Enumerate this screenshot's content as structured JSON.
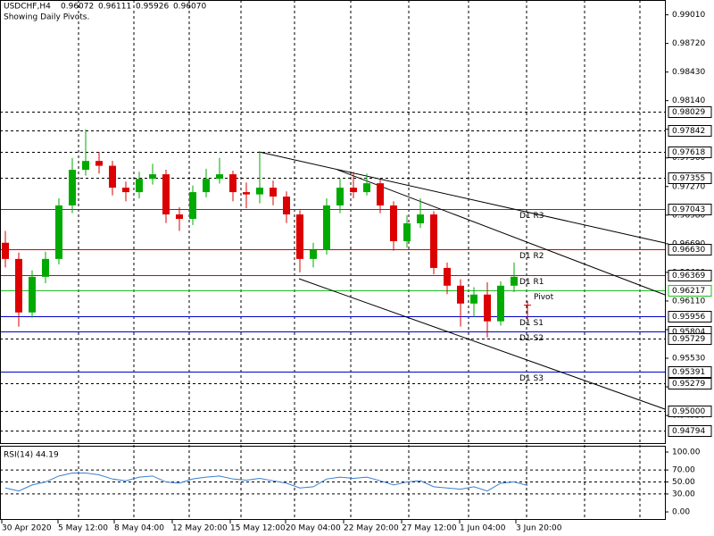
{
  "header": {
    "symbol": "USDCHF,H4",
    "ohlc": [
      "0.96072",
      "0.96111",
      "0.95926",
      "0.96070"
    ],
    "note": "Showing Daily Pivots."
  },
  "chart_data": {
    "type": "candlestick",
    "ylim": [
      0.9467,
      0.9916
    ],
    "yticks": [
      {
        "value": 0.9901,
        "label": "0.99010"
      },
      {
        "value": 0.9872,
        "label": "0.98720"
      },
      {
        "value": 0.9843,
        "label": "0.98430"
      },
      {
        "value": 0.9814,
        "label": "0.98140"
      },
      {
        "value": 0.9785,
        "label": "0.97850"
      },
      {
        "value": 0.9756,
        "label": "0.97560"
      },
      {
        "value": 0.9727,
        "label": "0.97270"
      },
      {
        "value": 0.9698,
        "label": "0.96980"
      },
      {
        "value": 0.9669,
        "label": "0.96690"
      },
      {
        "value": 0.964,
        "label": "0.96400"
      },
      {
        "value": 0.9611,
        "label": "0.96110"
      },
      {
        "value": 0.9582,
        "label": "0.95820"
      },
      {
        "value": 0.9553,
        "label": "0.95530"
      },
      {
        "value": 0.9524,
        "label": "0.95240"
      },
      {
        "value": 0.9495,
        "label": "0.94950"
      }
    ],
    "levels": [
      {
        "value": 0.98029,
        "label": "0.98029",
        "color": "#000000",
        "style": "dash"
      },
      {
        "value": 0.97842,
        "label": "0.97842",
        "color": "#000000",
        "style": "dash"
      },
      {
        "value": 0.97618,
        "label": "0.97618",
        "color": "#000000",
        "style": "dash"
      },
      {
        "value": 0.97355,
        "label": "0.97355",
        "color": "#000000",
        "style": "dash"
      },
      {
        "value": 0.97043,
        "label": "0.97043",
        "color": "#dd0000",
        "style": "solid",
        "text": "D1 R3"
      },
      {
        "value": 0.9663,
        "label": "0.96630",
        "color": "#dd0000",
        "style": "solid",
        "text": "D1 R2"
      },
      {
        "value": 0.96369,
        "label": "0.96369",
        "color": "#dd0000",
        "style": "solid",
        "text": "D1 R1"
      },
      {
        "value": 0.96217,
        "label": "0.96217",
        "color": "#22bb22",
        "style": "solid",
        "text": "Pivot"
      },
      {
        "value": 0.95956,
        "label": "0.95956",
        "color": "#0000cc",
        "style": "solid",
        "text": "D1 S1"
      },
      {
        "value": 0.95804,
        "label": "0.95804",
        "color": "#0000cc",
        "style": "solid",
        "text": "D1 S2"
      },
      {
        "value": 0.95729,
        "label": "0.95729",
        "color": "#000000",
        "style": "dash"
      },
      {
        "value": 0.95391,
        "label": "0.95391",
        "color": "#0000cc",
        "style": "solid",
        "text": "D1 S3"
      },
      {
        "value": 0.95279,
        "label": "0.95279",
        "color": "#000000",
        "style": "dash"
      },
      {
        "value": 0.95,
        "label": "0.95000",
        "color": "#000000",
        "style": "dash"
      },
      {
        "value": 0.94794,
        "label": "0.94794",
        "color": "#000000",
        "style": "dash"
      }
    ],
    "up_color": "#00aa00",
    "down_color": "#dd0000",
    "open": [
      0.967,
      0.96536,
      0.95994,
      0.96355,
      0.96536,
      0.97078,
      0.97439,
      0.97529,
      0.9748,
      0.97258,
      0.97213,
      0.97348,
      0.97394,
      0.96987,
      0.96942,
      0.97213,
      0.97348,
      0.97394,
      0.97213,
      0.9719,
      0.97258,
      0.97168,
      0.96987,
      0.96536,
      0.96626,
      0.97078,
      0.97258,
      0.97213,
      0.97303,
      0.97078,
      0.96716,
      0.96897,
      0.96987,
      0.96445,
      0.96265,
      0.96084,
      0.96175,
      0.95904,
      0.96265,
      0.96072
    ],
    "high": [
      0.9682,
      0.966,
      0.9642,
      0.9661,
      0.9715,
      0.9756,
      0.9785,
      0.9762,
      0.9753,
      0.9732,
      0.9742,
      0.975,
      0.9744,
      0.9706,
      0.9728,
      0.9745,
      0.9756,
      0.9743,
      0.9731,
      0.9762,
      0.9733,
      0.9722,
      0.9703,
      0.967,
      0.9715,
      0.9735,
      0.9742,
      0.974,
      0.9734,
      0.9712,
      0.9698,
      0.9715,
      0.9702,
      0.965,
      0.9633,
      0.9625,
      0.963,
      0.9631,
      0.965,
      0.96111
    ],
    "low": [
      0.9645,
      0.9585,
      0.9594,
      0.9629,
      0.9648,
      0.97,
      0.9738,
      0.974,
      0.9718,
      0.9712,
      0.9715,
      0.9729,
      0.969,
      0.9682,
      0.9688,
      0.9716,
      0.973,
      0.9712,
      0.9705,
      0.971,
      0.9708,
      0.969,
      0.964,
      0.9645,
      0.9658,
      0.97,
      0.9715,
      0.9718,
      0.97,
      0.9662,
      0.9665,
      0.9685,
      0.9638,
      0.9618,
      0.9585,
      0.9595,
      0.9574,
      0.9586,
      0.962,
      0.95926
    ],
    "close": [
      0.96536,
      0.95994,
      0.96355,
      0.96536,
      0.97078,
      0.97439,
      0.97529,
      0.9748,
      0.97258,
      0.97213,
      0.97348,
      0.97394,
      0.96987,
      0.96942,
      0.97213,
      0.97348,
      0.97394,
      0.97213,
      0.9719,
      0.97258,
      0.97168,
      0.96987,
      0.96536,
      0.96626,
      0.97078,
      0.97258,
      0.97213,
      0.97303,
      0.97078,
      0.96716,
      0.96897,
      0.96987,
      0.96445,
      0.96265,
      0.96084,
      0.96175,
      0.95904,
      0.96265,
      0.96355,
      0.9607
    ],
    "time_labels": [
      "30 Apr 2020",
      "5 May 12:00",
      "8 May 04:00",
      "12 May 20:00",
      "15 May 12:00",
      "20 May 04:00",
      "22 May 20:00",
      "27 May 12:00",
      "1 Jun 04:00",
      "3 Jun 20:00"
    ],
    "rsi": {
      "title": "RSI(14) 44.19",
      "color": "#3a7fd0",
      "ylim": [
        -13.4,
        109
      ],
      "yticks": [
        {
          "value": 100,
          "label": "100.00"
        },
        {
          "value": 70,
          "label": "70.00"
        },
        {
          "value": 50,
          "label": "50.00"
        },
        {
          "value": 30,
          "label": "30.00"
        },
        {
          "value": 0,
          "label": "0.00"
        }
      ],
      "levels": [
        70,
        50,
        30
      ],
      "values": [
        40,
        35,
        45,
        50,
        60,
        65,
        65,
        62,
        55,
        52,
        58,
        60,
        50,
        48,
        55,
        58,
        60,
        55,
        53,
        56,
        52,
        48,
        40,
        42,
        55,
        58,
        56,
        58,
        52,
        45,
        50,
        52,
        42,
        40,
        38,
        42,
        35,
        48,
        50,
        44.19
      ]
    }
  }
}
